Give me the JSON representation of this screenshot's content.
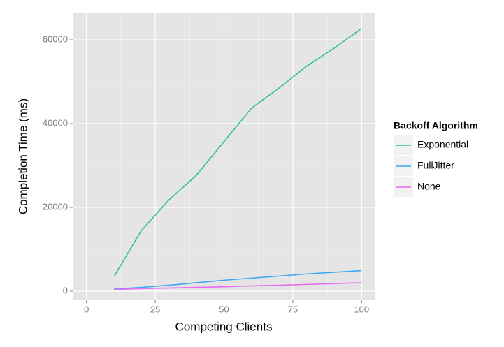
{
  "chart_data": {
    "type": "line",
    "x_label": "Competing Clients",
    "y_label": "Completion Time (ms)",
    "legend_title": "Backoff Algorithm",
    "legend_position": "right",
    "grid": true,
    "x": [
      10,
      20,
      30,
      40,
      50,
      60,
      70,
      80,
      90,
      100
    ],
    "series": [
      {
        "name": "Exponential",
        "color": "#35c18a",
        "values": [
          3500,
          14500,
          21800,
          27700,
          35700,
          43700,
          48500,
          53700,
          58000,
          62700
        ]
      },
      {
        "name": "FullJitter",
        "color": "#3aa8f0",
        "values": [
          500,
          900,
          1400,
          2000,
          2600,
          3100,
          3600,
          4100,
          4500,
          4900
        ]
      },
      {
        "name": "None",
        "color": "#e76bf3",
        "values": [
          400,
          600,
          750,
          900,
          1050,
          1250,
          1400,
          1600,
          1800,
          2000
        ]
      }
    ],
    "xlim": [
      -5,
      105
    ],
    "xticks": [
      0,
      25,
      50,
      75,
      100
    ],
    "ylim": [
      -2170,
      66500
    ],
    "yticks": [
      0,
      20000,
      40000,
      60000
    ]
  }
}
